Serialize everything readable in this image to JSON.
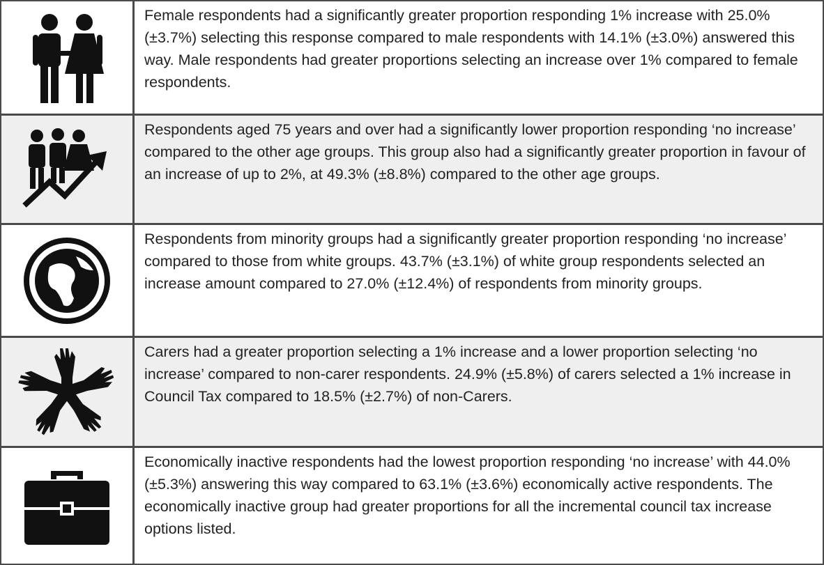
{
  "rows": [
    {
      "text": "Female respondents had a significantly greater proportion responding 1% increase with 25.0% (±3.7%) selecting this response compared to male respondents with 14.1% (±3.0%) answered this way. Male respondents had greater proportions selecting an increase over 1% compared to female respondents."
    },
    {
      "text": "Respondents aged 75 years and over had a significantly lower proportion responding ‘no increase’ compared to the other age groups. This group also had a significantly greater proportion in favour of an increase of up to 2%, at 49.3% (±8.8%) compared to the other age groups."
    },
    {
      "text": "Respondents from minority groups had a significantly greater proportion responding ‘no increase’ compared to those from white groups. 43.7% (±3.1%) of white group respondents selected an increase amount compared to 27.0% (±12.4%) of respondents from minority groups."
    },
    {
      "text": "Carers had a greater proportion selecting a 1% increase and a lower proportion selecting ‘no increase’ compared to non-carer respondents. 24.9% (±5.8%) of carers selected a 1% increase in Council Tax compared to 18.5% (±2.7%) of non-Carers."
    },
    {
      "text": "Economically inactive respondents had the lowest proportion responding ‘no increase’ with 44.0% (±5.3%) answering this way compared to 63.1% (±3.6%) economically active respondents. The economically inactive group had greater proportions for all the incremental council tax increase options listed."
    }
  ]
}
